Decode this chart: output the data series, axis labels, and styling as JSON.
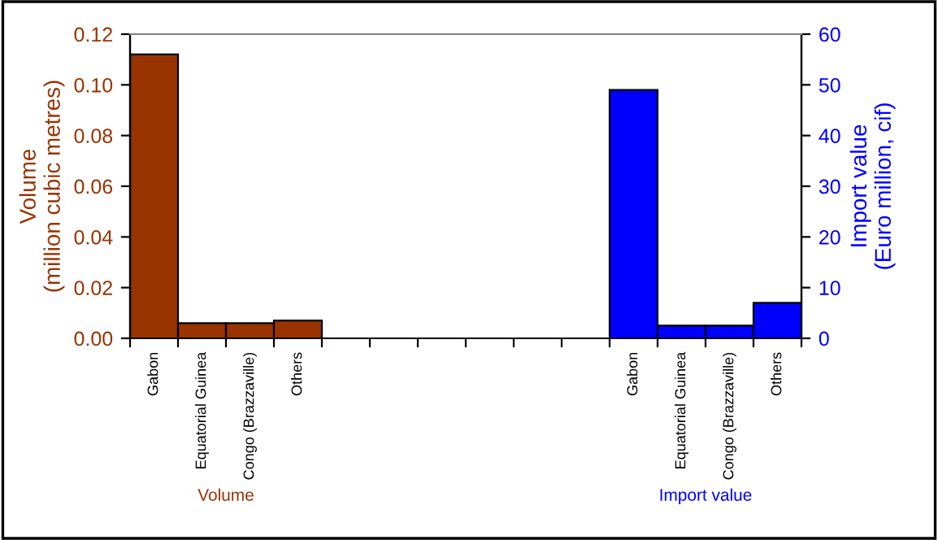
{
  "chart_data": {
    "type": "bar",
    "ylabel": "Volume\n(million cubic metres)",
    "y2label": "Import value\n(Euro million, cif)",
    "categories": [
      "Gabon",
      "Equatorial Guinea",
      "Congo (Brazzaville)",
      "Others",
      null,
      null,
      null,
      null,
      null,
      null,
      "Gabon",
      "Equatorial Guinea",
      "Congo (Brazzaville)",
      "Others"
    ],
    "series": [
      {
        "name": "Volume",
        "color": "#993300",
        "values": [
          0.112,
          0.006,
          0.006,
          0.007,
          null,
          null,
          null,
          null,
          null,
          null,
          null,
          null,
          null,
          null
        ]
      },
      {
        "name": "Import value",
        "color": "#0000ff",
        "axis": "y2",
        "values": [
          null,
          null,
          null,
          null,
          null,
          null,
          null,
          null,
          null,
          null,
          49,
          2.5,
          2.5,
          7
        ]
      }
    ],
    "ylim": [
      0,
      0.12
    ],
    "yticks": [
      {
        "value": 0,
        "label": "0.00"
      },
      {
        "value": 0.02,
        "label": "0.02"
      },
      {
        "value": 0.04,
        "label": "0.04"
      },
      {
        "value": 0.06,
        "label": "0.06"
      },
      {
        "value": 0.08,
        "label": "0.08"
      },
      {
        "value": 0.1,
        "label": "0.10"
      },
      {
        "value": 0.12,
        "label": "0.12"
      }
    ],
    "y2lim": [
      0,
      60
    ],
    "y2ticks": [
      0,
      10,
      20,
      30,
      40,
      50,
      60
    ],
    "grid": false,
    "legend": false
  }
}
